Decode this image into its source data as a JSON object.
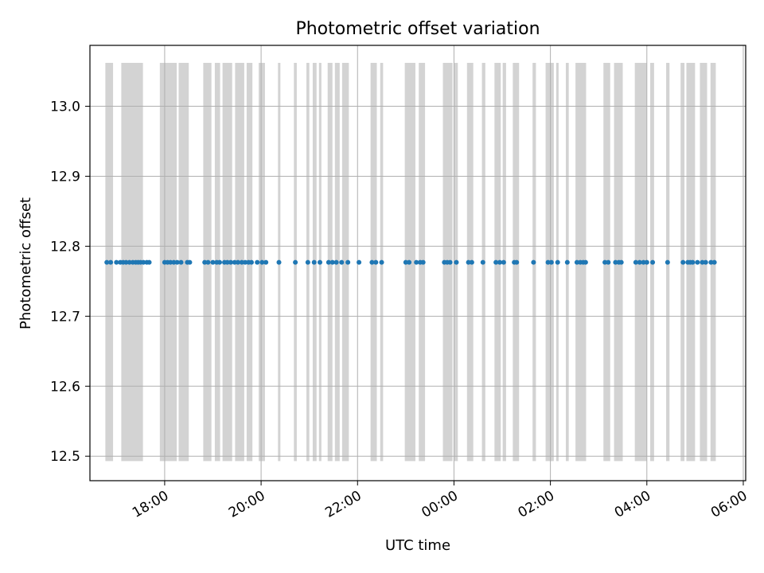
{
  "chart_data": {
    "type": "scatter",
    "title": "Photometric offset variation",
    "xlabel": "UTC time",
    "ylabel": "Photometric offset",
    "x_ticks": [
      "18:00",
      "20:00",
      "22:00",
      "00:00",
      "02:00",
      "04:00",
      "06:00"
    ],
    "y_ticks": [
      "12.5",
      "12.6",
      "12.7",
      "12.8",
      "12.9",
      "13.0"
    ],
    "xlim_hours": [
      16.45,
      30.05
    ],
    "ylim": [
      12.465,
      13.087
    ],
    "grid": true,
    "colors": {
      "points": "#1f77b4",
      "bands": "#d3d3d3",
      "grid": "#b0b0b0"
    },
    "band_range": [
      12.493,
      13.062
    ],
    "series": [
      {
        "offset": 12.777,
        "x_hours": [
          16.8,
          16.88,
          17.0,
          17.08,
          17.14,
          17.2,
          17.27,
          17.34,
          17.4,
          17.45,
          17.5,
          17.56,
          17.63,
          17.68,
          18.0,
          18.06,
          18.12,
          18.19,
          18.26,
          18.34,
          18.47,
          18.52,
          18.83,
          18.9,
          19.0,
          19.08,
          19.14,
          19.24,
          19.3,
          19.37,
          19.45,
          19.52,
          19.6,
          19.67,
          19.74,
          19.8,
          19.92,
          20.02,
          20.1,
          20.37,
          20.71,
          20.97,
          21.1,
          21.22,
          21.4,
          21.48,
          21.56,
          21.67,
          21.8,
          22.03,
          22.3,
          22.38,
          22.5,
          23.0,
          23.07,
          23.22,
          23.3,
          23.36,
          23.8,
          23.86,
          23.92,
          24.05,
          24.3,
          24.37,
          24.6,
          24.87,
          24.95,
          25.03,
          25.25,
          25.3,
          25.65,
          25.95,
          26.02,
          26.15,
          26.35,
          26.55,
          26.62,
          26.68,
          26.73,
          27.13,
          27.2,
          27.35,
          27.42,
          27.47,
          27.77,
          27.85,
          27.93,
          28.0,
          28.12,
          28.43,
          28.75,
          28.85,
          28.9,
          28.95,
          29.05,
          29.15,
          29.22,
          29.33,
          29.4
        ]
      }
    ],
    "bands_hours": [
      [
        16.77,
        16.93
      ],
      [
        17.1,
        17.55
      ],
      [
        17.9,
        18.25
      ],
      [
        18.29,
        18.5
      ],
      [
        18.8,
        18.97
      ],
      [
        19.04,
        19.15
      ],
      [
        19.2,
        19.4
      ],
      [
        19.46,
        19.65
      ],
      [
        19.7,
        19.82
      ],
      [
        19.95,
        20.08
      ],
      [
        20.35,
        20.4
      ],
      [
        20.68,
        20.74
      ],
      [
        20.94,
        21.0
      ],
      [
        21.07,
        21.15
      ],
      [
        21.2,
        21.25
      ],
      [
        21.38,
        21.48
      ],
      [
        21.53,
        21.63
      ],
      [
        21.68,
        21.82
      ],
      [
        22.27,
        22.4
      ],
      [
        22.47,
        22.53
      ],
      [
        22.98,
        23.2
      ],
      [
        23.27,
        23.4
      ],
      [
        23.77,
        23.97
      ],
      [
        24.0,
        24.08
      ],
      [
        24.27,
        24.4
      ],
      [
        24.58,
        24.65
      ],
      [
        24.84,
        24.97
      ],
      [
        25.01,
        25.08
      ],
      [
        25.22,
        25.35
      ],
      [
        25.63,
        25.7
      ],
      [
        25.9,
        26.07
      ],
      [
        26.12,
        26.17
      ],
      [
        26.32,
        26.38
      ],
      [
        26.52,
        26.74
      ],
      [
        27.1,
        27.24
      ],
      [
        27.32,
        27.5
      ],
      [
        27.75,
        28.0
      ],
      [
        28.07,
        28.15
      ],
      [
        28.4,
        28.47
      ],
      [
        28.7,
        28.78
      ],
      [
        28.82,
        29.0
      ],
      [
        29.1,
        29.25
      ],
      [
        29.32,
        29.43
      ]
    ]
  }
}
